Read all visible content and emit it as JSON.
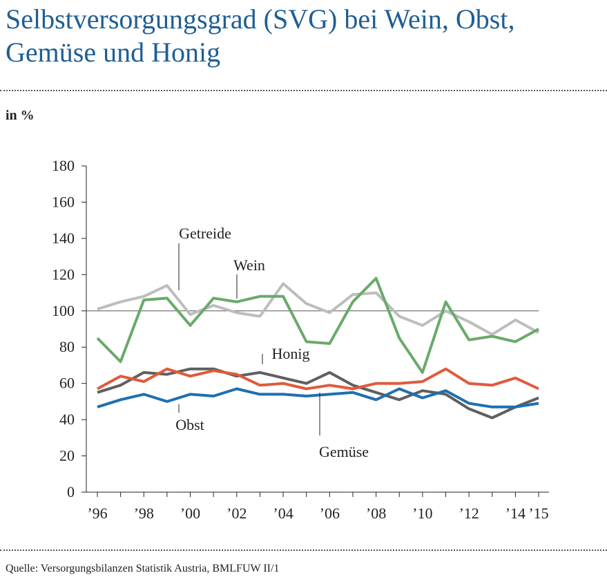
{
  "chart_data": {
    "type": "line",
    "title": "Selbstversorgungsgrad (SVG) bei Wein, Obst, Gemüse und Honig",
    "y_label": "in %",
    "source": "Quelle: Versorgungsbilanzen Statistik Austria, BMLFUW II/1",
    "categories": [
      "’96",
      null,
      "’98",
      null,
      "’00",
      null,
      "’02",
      null,
      "’04",
      null,
      "’06",
      null,
      "’08",
      null,
      "’10",
      null,
      "’12",
      null,
      "’14",
      "’15"
    ],
    "ylim": [
      0,
      180
    ],
    "yticks": [
      0,
      20,
      40,
      60,
      80,
      100,
      120,
      140,
      160,
      180
    ],
    "reference_line": 100,
    "series": [
      {
        "name": "Getreide",
        "color": "#bdbdbd",
        "values": [
          101,
          105,
          108,
          114,
          98,
          103,
          99,
          97,
          115,
          104,
          99,
          109,
          110,
          97,
          92,
          100,
          94,
          87,
          95,
          88
        ]
      },
      {
        "name": "Wein",
        "color": "#6aaa6a",
        "values": [
          85,
          72,
          106,
          107,
          92,
          107,
          105,
          108,
          108,
          83,
          82,
          105,
          118,
          85,
          66,
          105,
          84,
          86,
          83,
          90
        ]
      },
      {
        "name": "Honig",
        "color": "#5f5f5f",
        "values": [
          55,
          59,
          66,
          65,
          68,
          68,
          64,
          66,
          63,
          60,
          66,
          59,
          55,
          51,
          56,
          54,
          46,
          41,
          47,
          52
        ]
      },
      {
        "name": "Obst",
        "color": "#1f6fae",
        "values": [
          47,
          51,
          54,
          50,
          54,
          53,
          57,
          54,
          54,
          53,
          54,
          55,
          51,
          57,
          52,
          56,
          49,
          47,
          47,
          49
        ]
      },
      {
        "name": "Gemüse",
        "color": "#e05a3c",
        "values": [
          57,
          64,
          61,
          68,
          64,
          67,
          65,
          59,
          60,
          57,
          59,
          57,
          60,
          60,
          61,
          68,
          60,
          59,
          63,
          57
        ]
      }
    ]
  }
}
